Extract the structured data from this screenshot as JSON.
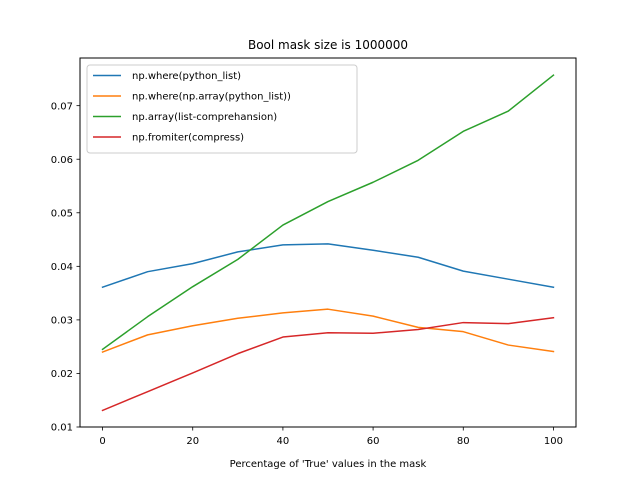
{
  "chart_data": {
    "type": "line",
    "title": "Bool mask size is 1000000",
    "xlabel": "Percentage of 'True' values in the mask",
    "ylabel": "",
    "x": [
      0,
      10,
      20,
      30,
      40,
      50,
      60,
      70,
      80,
      90,
      100
    ],
    "xlim": [
      -5,
      105
    ],
    "ylim": [
      0.01,
      0.0789
    ],
    "xticks": [
      0,
      20,
      40,
      60,
      80,
      100
    ],
    "xtick_labels": [
      "0",
      "20",
      "40",
      "60",
      "80",
      "100"
    ],
    "yticks": [
      0.01,
      0.02,
      0.03,
      0.04,
      0.05,
      0.06,
      0.07
    ],
    "ytick_labels": [
      "0.01",
      "0.02",
      "0.03",
      "0.04",
      "0.05",
      "0.06",
      "0.07"
    ],
    "grid": false,
    "legend_position": "top-left",
    "series": [
      {
        "name": "np.where(python_list)",
        "color": "#1f77b4",
        "values": [
          0.0361,
          0.039,
          0.0405,
          0.0427,
          0.044,
          0.0442,
          0.043,
          0.0417,
          0.0391,
          0.0376,
          0.0361
        ]
      },
      {
        "name": "np.where(np.array(python_list))",
        "color": "#ff7f0e",
        "values": [
          0.024,
          0.0272,
          0.0289,
          0.0303,
          0.0313,
          0.032,
          0.0307,
          0.0286,
          0.0278,
          0.0253,
          0.0241
        ]
      },
      {
        "name": "np.array(list-comprehansion)",
        "color": "#2ca02c",
        "values": [
          0.0245,
          0.0306,
          0.0362,
          0.0413,
          0.0477,
          0.0521,
          0.0557,
          0.0598,
          0.0652,
          0.069,
          0.0757
        ]
      },
      {
        "name": "np.fromiter(compress)",
        "color": "#d62728",
        "values": [
          0.0131,
          0.0166,
          0.0201,
          0.0237,
          0.0268,
          0.0276,
          0.0275,
          0.0282,
          0.0295,
          0.0293,
          0.0304
        ]
      }
    ]
  }
}
